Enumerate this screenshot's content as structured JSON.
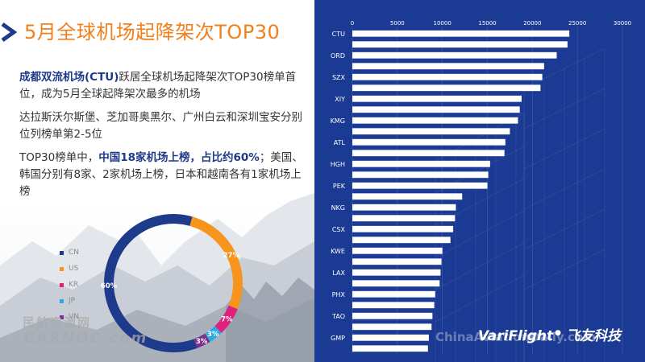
{
  "slide": {
    "title": "5月全球机场起降架次TOP30",
    "paragraph1": {
      "highlight": "成都双流机场(CTU)",
      "rest": "跃居全球机场起降架次TOP30榜单首位，成为5月全球起降架次最多的机场"
    },
    "paragraph2": "达拉斯沃尔斯堡、芝加哥奥黑尔、广州白云和深圳宝安分别位列榜单第2-5位",
    "paragraph3": {
      "prefix": "TOP30榜单中，",
      "highlight": "中国18家机场上榜，占比约60%",
      "suffix": "；美国、韩国分别有8家、2家机场上榜，日本和越南各有1家机场上榜"
    },
    "watermark_cn": "民航资源网",
    "watermark_en": "CARNOC.com",
    "brand_en": "VariFlight",
    "brand_cn": "飞友科技",
    "brand_watermark": "ChinaAviationDaily.com"
  },
  "colors": {
    "title": "#f07f1c",
    "emphasis": "#1e3a8a",
    "panel": "#1b3a93",
    "bar": "#ffffff",
    "CN": "#1e3a8a",
    "US": "#f7941d",
    "KR": "#e0217b",
    "JP": "#29abe2",
    "VN": "#7b2f8e"
  },
  "chart_data": [
    {
      "type": "pie",
      "subtype": "donut",
      "categories": [
        "CN",
        "US",
        "KR",
        "JP",
        "VN"
      ],
      "values": [
        18,
        8,
        2,
        1,
        1
      ],
      "labels": [
        "60%",
        "27%",
        "7%",
        "3%",
        "3%"
      ],
      "legend": "left"
    },
    {
      "type": "bar",
      "orientation": "horizontal",
      "xlim": [
        0,
        30000
      ],
      "xticks": [
        0,
        5000,
        10000,
        15000,
        20000,
        25000,
        30000
      ],
      "tick_labels": [
        "0",
        "5000",
        "10000",
        "15000",
        "20000",
        "25000",
        "30000"
      ],
      "grid": true,
      "category_labels": [
        "CTU",
        "ORD",
        "SZX",
        "XIY",
        "KMG",
        "ATL",
        "HGH",
        "PEK",
        "NKG",
        "CSX",
        "KWE",
        "LAX",
        "PHX",
        "TAO",
        "GMP"
      ],
      "values": [
        24100,
        23900,
        22700,
        21300,
        21100,
        20900,
        18800,
        18600,
        18400,
        17500,
        17000,
        16900,
        15300,
        15100,
        15000,
        12200,
        11500,
        11400,
        11200,
        10900,
        10000,
        9900,
        9800,
        9700,
        9200,
        9100,
        8900,
        8800,
        8500,
        8400
      ]
    }
  ]
}
